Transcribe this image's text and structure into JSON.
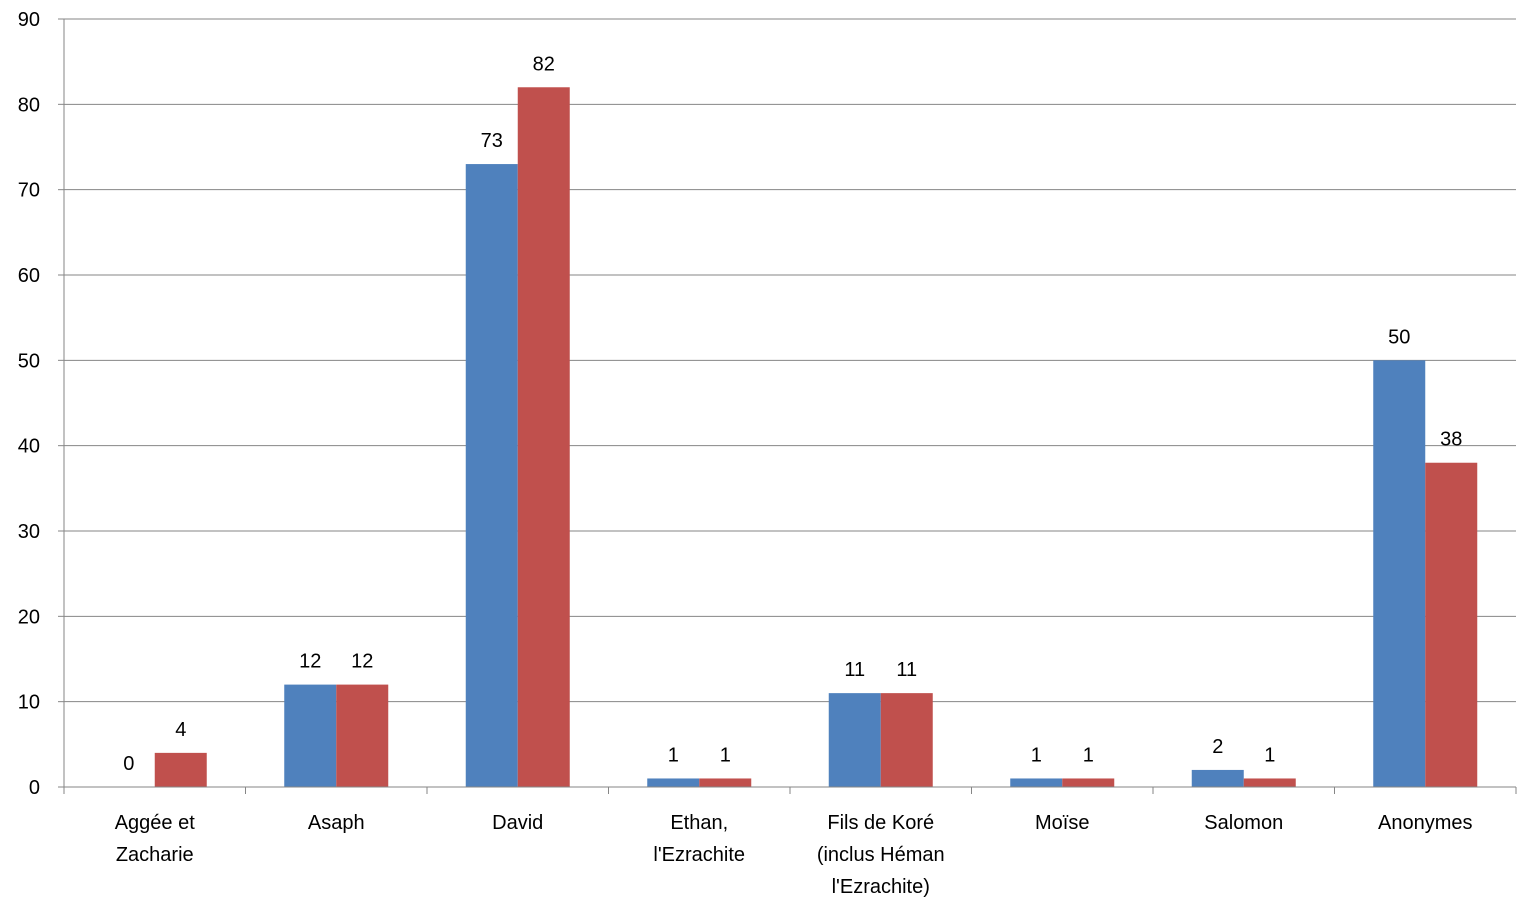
{
  "chart_data": {
    "type": "bar",
    "categories": [
      [
        "Aggée et",
        "Zacharie"
      ],
      [
        "Asaph"
      ],
      [
        "David"
      ],
      [
        "Ethan,",
        "l'Ezrachite"
      ],
      [
        "Fils de Koré",
        "(inclus Héman",
        "l'Ezrachite)"
      ],
      [
        "Moïse"
      ],
      [
        "Salomon"
      ],
      [
        "Anonymes"
      ]
    ],
    "series": [
      {
        "values": [
          0,
          12,
          73,
          1,
          11,
          1,
          2,
          50
        ],
        "color": "#4F81BD"
      },
      {
        "values": [
          4,
          12,
          82,
          1,
          11,
          1,
          1,
          38
        ],
        "color": "#C0504D"
      }
    ],
    "ylim": [
      0,
      90
    ],
    "yticks": [
      0,
      10,
      20,
      30,
      40,
      50,
      60,
      70,
      80,
      90
    ],
    "grid": true,
    "legend": "none"
  }
}
